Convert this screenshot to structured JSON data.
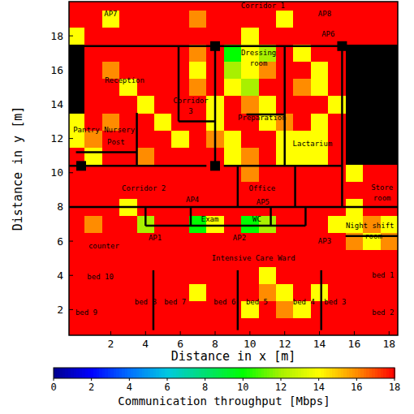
{
  "chart_data": {
    "type": "heatmap",
    "x_label": "Distance in x [m]",
    "y_label": "Distance in y [m]",
    "xlim": [
      -0.4,
      18.5
    ],
    "ylim": [
      0.5,
      20
    ],
    "xticks": [
      2,
      4,
      6,
      8,
      10,
      12,
      14,
      16,
      18
    ],
    "yticks": [
      2,
      4,
      6,
      8,
      10,
      12,
      14,
      16,
      18
    ],
    "x": [
      0,
      1,
      2,
      3,
      4,
      5,
      6,
      7,
      8,
      9,
      10,
      11,
      12,
      13,
      14,
      15,
      16,
      17,
      18
    ],
    "y": [
      1,
      2,
      3,
      4,
      5,
      6,
      7,
      8,
      9,
      10,
      11,
      12,
      13,
      14,
      15,
      16,
      17,
      18,
      19,
      20
    ],
    "cells": [
      [
        18,
        18,
        18,
        18,
        18,
        18,
        18,
        18,
        18,
        18,
        18,
        18,
        18,
        18,
        18,
        18,
        18,
        18,
        18
      ],
      [
        18,
        18,
        18,
        18,
        18,
        18,
        18,
        18,
        18,
        18,
        14,
        18,
        16,
        14,
        18,
        18,
        18,
        18,
        18
      ],
      [
        18,
        18,
        18,
        18,
        18,
        18,
        18,
        14,
        18,
        18,
        18,
        16,
        14,
        18,
        14,
        18,
        18,
        18,
        18
      ],
      [
        18,
        18,
        18,
        18,
        18,
        18,
        18,
        18,
        18,
        18,
        18,
        14,
        18,
        18,
        18,
        18,
        18,
        18,
        18
      ],
      [
        18,
        18,
        18,
        18,
        18,
        18,
        18,
        18,
        18,
        18,
        18,
        18,
        18,
        18,
        18,
        18,
        18,
        18,
        18
      ],
      [
        18,
        18,
        18,
        18,
        18,
        18,
        18,
        18,
        18,
        18,
        18,
        18,
        18,
        18,
        18,
        18,
        16,
        14,
        16
      ],
      [
        18,
        16,
        18,
        18,
        12,
        18,
        18,
        10,
        14,
        18,
        10,
        12,
        18,
        18,
        18,
        14,
        14,
        16,
        14
      ],
      [
        18,
        18,
        18,
        14,
        18,
        18,
        18,
        18,
        18,
        18,
        18,
        18,
        18,
        18,
        18,
        18,
        14,
        18,
        18
      ],
      [
        18,
        18,
        18,
        18,
        18,
        18,
        18,
        18,
        18,
        18,
        18,
        18,
        18,
        18,
        18,
        18,
        18,
        18,
        18
      ],
      [
        18,
        18,
        18,
        18,
        18,
        18,
        18,
        18,
        18,
        18,
        16,
        18,
        18,
        18,
        18,
        18,
        14,
        18,
        18
      ],
      [
        18,
        14,
        18,
        18,
        16,
        18,
        18,
        18,
        18,
        14,
        16,
        18,
        14,
        14,
        14,
        18,
        null,
        null,
        null
      ],
      [
        14,
        16,
        18,
        18,
        18,
        18,
        14,
        18,
        16,
        14,
        18,
        18,
        14,
        14,
        14,
        18,
        null,
        null,
        null
      ],
      [
        14,
        18,
        16,
        18,
        18,
        14,
        18,
        18,
        14,
        18,
        18,
        14,
        16,
        18,
        14,
        18,
        null,
        null,
        null
      ],
      [
        null,
        18,
        18,
        18,
        14,
        18,
        18,
        18,
        14,
        18,
        16,
        14,
        18,
        18,
        18,
        14,
        null,
        null,
        null
      ],
      [
        null,
        18,
        18,
        14,
        18,
        18,
        18,
        16,
        18,
        14,
        12,
        18,
        18,
        16,
        14,
        18,
        null,
        null,
        null
      ],
      [
        null,
        18,
        16,
        18,
        18,
        18,
        18,
        14,
        18,
        12,
        14,
        16,
        18,
        18,
        14,
        18,
        null,
        null,
        null
      ],
      [
        null,
        18,
        18,
        18,
        18,
        18,
        18,
        16,
        18,
        10,
        14,
        12,
        18,
        14,
        18,
        18,
        null,
        null,
        null
      ],
      [
        14,
        18,
        18,
        18,
        18,
        18,
        18,
        18,
        18,
        18,
        14,
        18,
        18,
        18,
        18,
        18,
        18,
        18,
        18
      ],
      [
        18,
        18,
        14,
        18,
        18,
        18,
        18,
        16,
        18,
        18,
        18,
        18,
        14,
        18,
        18,
        18,
        18,
        18,
        18
      ],
      [
        18,
        18,
        18,
        18,
        18,
        18,
        18,
        18,
        18,
        18,
        18,
        18,
        18,
        18,
        18,
        18,
        18,
        18,
        18
      ]
    ],
    "colorbar": {
      "label": "Communication throughput [Mbps]",
      "range": [
        0,
        18
      ],
      "ticks": [
        0,
        2,
        4,
        6,
        8,
        10,
        12,
        14,
        16,
        18
      ]
    },
    "annotations": [
      {
        "text": "Corridor 1",
        "x": 10.75,
        "y": 19.75
      },
      {
        "text": "AP7",
        "x": 2.0,
        "y": 19.3
      },
      {
        "text": "AP8",
        "x": 14.3,
        "y": 19.3
      },
      {
        "text": "AP6",
        "x": 14.5,
        "y": 18.1
      },
      {
        "text": "Reception",
        "x": 2.8,
        "y": 15.4
      },
      {
        "text": "Dressing",
        "x": 10.5,
        "y": 17.0
      },
      {
        "text": "room",
        "x": 10.5,
        "y": 16.4
      },
      {
        "text": "Corridor",
        "x": 6.6,
        "y": 14.2
      },
      {
        "text": "3",
        "x": 6.6,
        "y": 13.6
      },
      {
        "text": "Preparation",
        "x": 10.7,
        "y": 13.2
      },
      {
        "text": "Pantry",
        "x": 0.6,
        "y": 12.5
      },
      {
        "text": "Nursery",
        "x": 2.5,
        "y": 12.5
      },
      {
        "text": "Post",
        "x": 2.3,
        "y": 11.8
      },
      {
        "text": "Lactarium",
        "x": 13.6,
        "y": 11.7
      },
      {
        "text": "Corridor 2",
        "x": 3.9,
        "y": 9.1
      },
      {
        "text": "Office",
        "x": 10.7,
        "y": 9.1
      },
      {
        "text": "AP4",
        "x": 6.7,
        "y": 8.4
      },
      {
        "text": "AP5",
        "x": 10.75,
        "y": 8.3
      },
      {
        "text": "Store",
        "x": 17.6,
        "y": 9.15
      },
      {
        "text": "room",
        "x": 17.6,
        "y": 8.5
      },
      {
        "text": "Exam",
        "x": 7.7,
        "y": 7.3
      },
      {
        "text": "WC",
        "x": 10.4,
        "y": 7.3
      },
      {
        "text": "Night shift",
        "x": 16.9,
        "y": 6.9
      },
      {
        "text": "room",
        "x": 17.1,
        "y": 6.3
      },
      {
        "text": "AP1",
        "x": 4.55,
        "y": 6.2
      },
      {
        "text": "AP2",
        "x": 9.4,
        "y": 6.2
      },
      {
        "text": "AP3",
        "x": 14.3,
        "y": 6.0
      },
      {
        "text": "counter",
        "x": 1.6,
        "y": 5.7
      },
      {
        "text": "Intensive Care Ward",
        "x": 10.2,
        "y": 5.0
      },
      {
        "text": "bed 10",
        "x": 1.4,
        "y": 3.9
      },
      {
        "text": "bed 1",
        "x": 17.65,
        "y": 4.0
      },
      {
        "text": "bed 8",
        "x": 4.0,
        "y": 2.45
      },
      {
        "text": "bed 7",
        "x": 5.7,
        "y": 2.45
      },
      {
        "text": "bed 6",
        "x": 8.55,
        "y": 2.45
      },
      {
        "text": "bed 5",
        "x": 10.4,
        "y": 2.45
      },
      {
        "text": "bed 4",
        "x": 13.1,
        "y": 2.45
      },
      {
        "text": "bed 3",
        "x": 14.9,
        "y": 2.45
      },
      {
        "text": "bed 9",
        "x": 0.6,
        "y": 1.85
      },
      {
        "text": "bed 2",
        "x": 17.65,
        "y": 1.85
      }
    ]
  }
}
